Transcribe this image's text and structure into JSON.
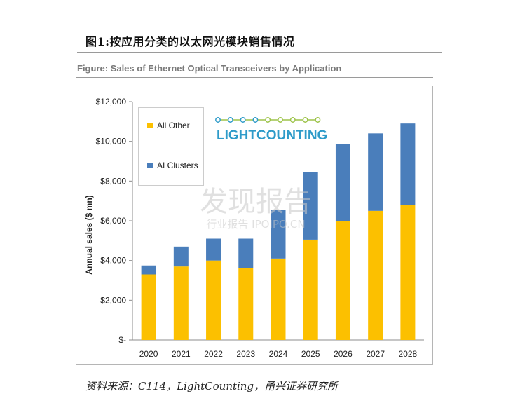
{
  "report": {
    "title": "图1:按应用分类的以太网光模块销售情况",
    "figure_caption": "Figure: Sales of Ethernet Optical Transceivers by Application",
    "source": "资料来源：C114，LightCounting，甬兴证券研究所"
  },
  "logo": {
    "text": "LIGHTCOUNTING"
  },
  "watermark": {
    "main": "发现报告",
    "sub": "行业报告 IPOIPO.CN"
  },
  "colors": {
    "all_other": "#fcc000",
    "ai_clusters": "#4a7ebb",
    "logo_text": "#2e9bc9",
    "logo_dots": "#9dc34a"
  },
  "chart_data": {
    "type": "bar",
    "stacked": true,
    "categories": [
      "2020",
      "2021",
      "2022",
      "2023",
      "2024",
      "2025",
      "2026",
      "2027",
      "2028"
    ],
    "series": [
      {
        "name": "All Other",
        "values": [
          3300,
          3700,
          4000,
          3600,
          4100,
          5050,
          6000,
          6500,
          6800
        ]
      },
      {
        "name": "AI Clusters",
        "values": [
          450,
          1000,
          1100,
          1500,
          2450,
          3400,
          3850,
          3900,
          4100
        ]
      }
    ],
    "ylabel": "Annual sales ($ mn)",
    "xlabel": "",
    "ylim": [
      0,
      12000
    ],
    "yticks": [
      0,
      2000,
      4000,
      6000,
      8000,
      10000,
      12000
    ],
    "ytick_labels": [
      "$-",
      "$2,000",
      "$4,000",
      "$6,000",
      "$8,000",
      "$10,000",
      "$12,000"
    ],
    "grid": false,
    "legend": {
      "placement": "top-left",
      "order": [
        "All Other",
        "AI Clusters"
      ]
    }
  }
}
